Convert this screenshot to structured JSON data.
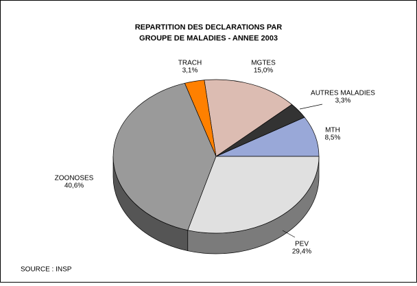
{
  "chart_data": {
    "type": "pie",
    "title": [
      "REPARTITION DES DECLARATIONS PAR",
      "GROUPE DE MALADIES - ANNEE 2003"
    ],
    "categories": [
      "MTH",
      "AUTRES MALADIES",
      "MGTES",
      "TRACH",
      "ZOONOSES",
      "PEV"
    ],
    "values": [
      8.5,
      3.3,
      15.0,
      3.1,
      40.6,
      29.4
    ],
    "value_labels": [
      "8,5%",
      "3,3%",
      "15,0%",
      "3,1%",
      "40,6%",
      "29,4%"
    ],
    "colors": [
      "#99a8d8",
      "#333333",
      "#dcbcb2",
      "#ff8000",
      "#9a9a9a",
      "#e0e0e0"
    ],
    "source": "SOURCE : INSP"
  }
}
